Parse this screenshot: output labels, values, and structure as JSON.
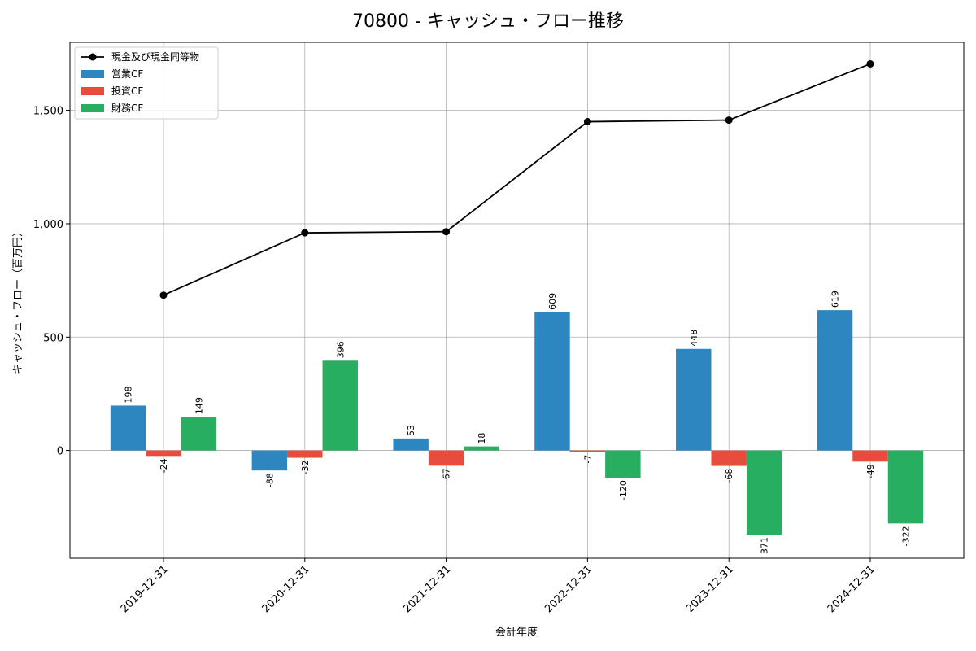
{
  "chart_data": {
    "type": "bar",
    "title": "70800 - キャッシュ・フロー推移",
    "xlabel": "会計年度",
    "ylabel": "キャッシュ・フロー（百万円）",
    "categories": [
      "2019-12-31",
      "2020-12-31",
      "2021-12-31",
      "2022-12-31",
      "2023-12-31",
      "2024-12-31"
    ],
    "ylim": [
      -475,
      1800
    ],
    "yticks": [
      0,
      500,
      1000,
      1500
    ],
    "ytick_labels": [
      "0",
      "500",
      "1,000",
      "1,500"
    ],
    "grid": true,
    "legend_position": "top-left",
    "series": [
      {
        "name": "営業CF",
        "kind": "bar",
        "color": "#2e86c1",
        "values": [
          198,
          -88,
          53,
          609,
          448,
          619
        ],
        "labels": [
          "198",
          "-88",
          "53",
          "609",
          "448",
          "619"
        ]
      },
      {
        "name": "投資CF",
        "kind": "bar",
        "color": "#e74c3c",
        "values": [
          -24,
          -32,
          -67,
          -7,
          -68,
          -49
        ],
        "labels": [
          "-24",
          "-32",
          "-67",
          "-7",
          "-68",
          "-49"
        ]
      },
      {
        "name": "財務CF",
        "kind": "bar",
        "color": "#27ae60",
        "values": [
          149,
          396,
          18,
          -120,
          -371,
          -322
        ],
        "labels": [
          "149",
          "396",
          "18",
          "-120",
          "-371",
          "-322"
        ]
      },
      {
        "name": "現金及び現金同等物",
        "kind": "line",
        "color": "#000000",
        "values": [
          685,
          960,
          965,
          1450,
          1457,
          1705
        ]
      }
    ],
    "legend_order": [
      3,
      0,
      1,
      2
    ]
  }
}
